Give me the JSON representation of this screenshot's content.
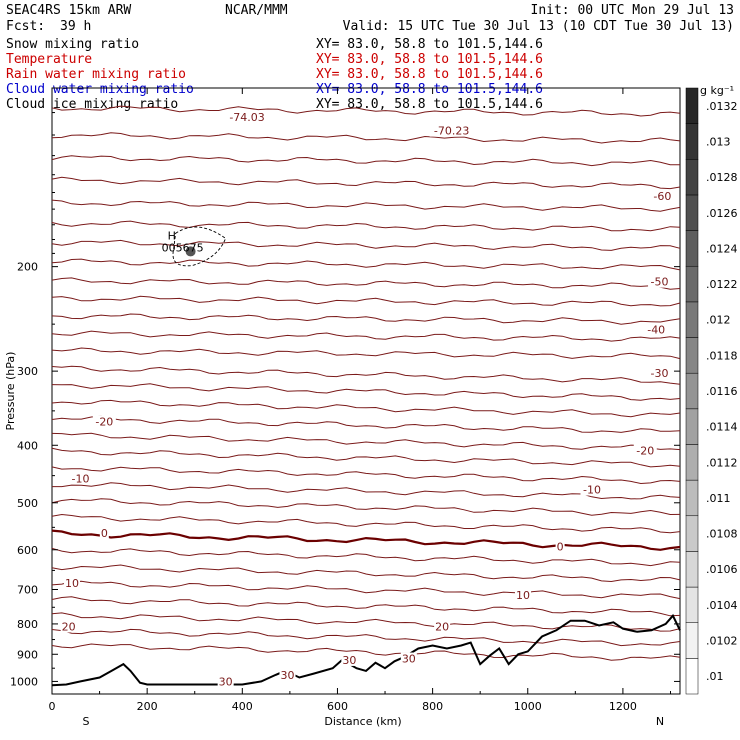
{
  "header": {
    "model": "SEAC4RS 15km ARW",
    "org": "NCAR/MMM",
    "init": "Init: 00 UTC Mon 29 Jul 13",
    "fcst_label": "Fcst:",
    "fcst_value": "39 h",
    "valid": "Valid: 15 UTC Tue 30 Jul 13 (10 CDT Tue 30 Jul 13)",
    "lines": [
      {
        "name": "Snow mixing ratio",
        "xy": "XY=  83.0, 58.8 to 101.5,144.6",
        "color": "#000000"
      },
      {
        "name": "Temperature",
        "xy": "XY=  83.0, 58.8 to 101.5,144.6",
        "color": "#cc0000"
      },
      {
        "name": "Rain water mixing ratio",
        "xy": "XY=  83.0, 58.8 to 101.5,144.6",
        "color": "#cc0000"
      },
      {
        "name": "Cloud water mixing ratio",
        "xy": "XY=  83.0, 58.8 to 101.5,144.6",
        "color": "#0000cc"
      },
      {
        "name": "Cloud ice mixing ratio",
        "xy": "XY=  83.0, 58.8 to 101.5,144.6",
        "color": "#000000"
      }
    ]
  },
  "colors": {
    "temperature": "#7a1a1a",
    "zero_isotherm": "#6b0000",
    "terrain": "#000000"
  },
  "chart_data": {
    "type": "cross-section",
    "xlabel": "Distance (km)",
    "ylabel": "Pressure (hPa)",
    "xlim": [
      0,
      1320
    ],
    "ylim": [
      1050,
      100
    ],
    "y_scale": "log",
    "x_ticks": [
      0,
      200,
      400,
      600,
      800,
      1000,
      1200
    ],
    "y_ticks": [
      200,
      300,
      400,
      500,
      600,
      700,
      800,
      900,
      1000
    ],
    "x_end_labels": {
      "left": "S",
      "right": "N"
    },
    "temperature_isotherms_C": {
      "interval": 5,
      "labels": [
        {
          "text": "-74.03",
          "x": 410,
          "p": 112
        },
        {
          "text": "-70.23",
          "x": 840,
          "p": 118
        },
        {
          "text": "-60",
          "x": 1283,
          "p": 152
        },
        {
          "text": "-50",
          "x": 1277,
          "p": 212
        },
        {
          "text": "-40",
          "x": 1270,
          "p": 255
        },
        {
          "text": "-30",
          "x": 1277,
          "p": 302
        },
        {
          "text": "-20",
          "x": 110,
          "p": 365
        },
        {
          "text": "-20",
          "x": 1247,
          "p": 408
        },
        {
          "text": "-10",
          "x": 60,
          "p": 455
        },
        {
          "text": "-10",
          "x": 1135,
          "p": 475
        },
        {
          "text": "0",
          "x": 110,
          "p": 562
        },
        {
          "text": "0",
          "x": 1068,
          "p": 592
        },
        {
          "text": "10",
          "x": 42,
          "p": 682
        },
        {
          "text": "10",
          "x": 990,
          "p": 715
        },
        {
          "text": "20",
          "x": 35,
          "p": 808
        },
        {
          "text": "20",
          "x": 820,
          "p": 808
        },
        {
          "text": "30",
          "x": 495,
          "p": 975
        },
        {
          "text": "30",
          "x": 625,
          "p": 920
        },
        {
          "text": "30",
          "x": 750,
          "p": 915
        },
        {
          "text": "30",
          "x": 365,
          "p": 1000
        }
      ]
    },
    "cloud_ice": {
      "max_label": "H",
      "max_value": "005675",
      "x": 285,
      "p": 190
    },
    "colorbar": {
      "unit": "g kg⁻¹",
      "ticks": [
        ".01",
        ".0102",
        ".0104",
        ".0106",
        ".0108",
        ".011",
        ".0112",
        ".0114",
        ".0116",
        ".0118",
        ".012",
        ".0122",
        ".0124",
        ".0126",
        ".0128",
        ".013",
        ".0132"
      ]
    }
  }
}
